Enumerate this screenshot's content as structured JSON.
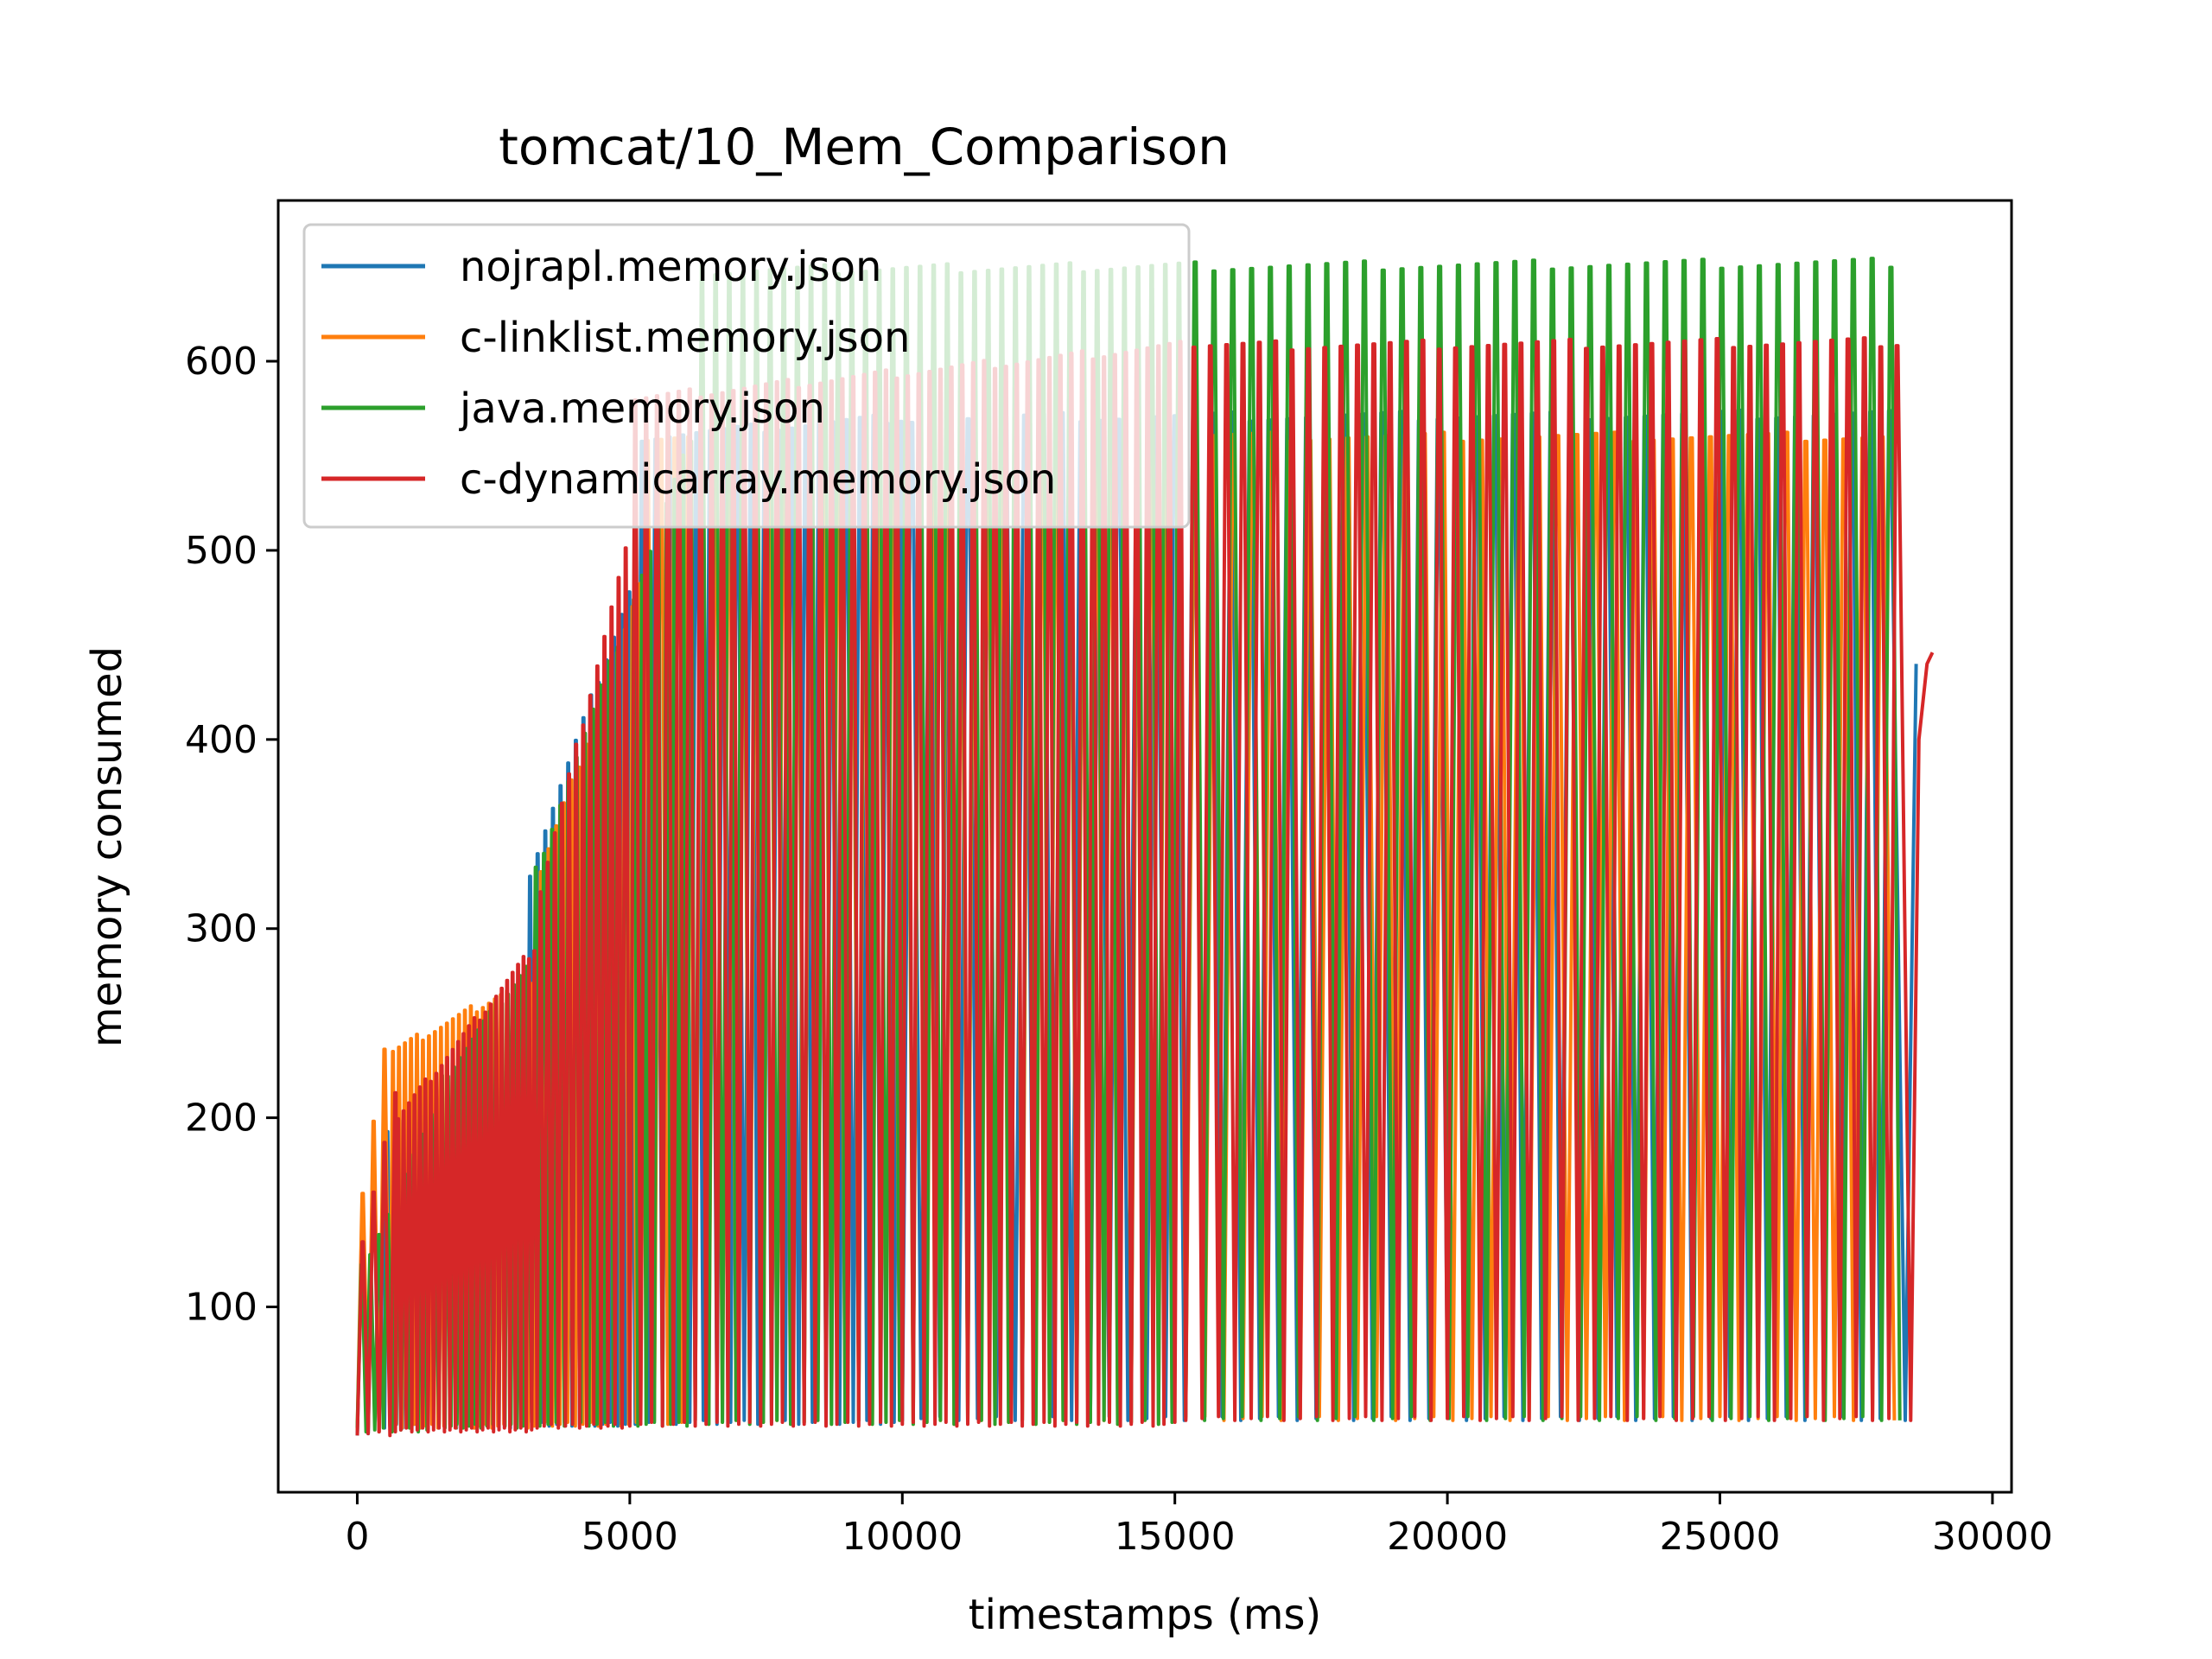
{
  "chart_data": {
    "type": "line",
    "title": "tomcat/10_Mem_Comparison",
    "xlabel": "timestamps (ms)",
    "ylabel": "memory consumed",
    "xlim": [
      -1450,
      30350
    ],
    "ylim": [
      2,
      685
    ],
    "xticks": [
      0,
      5000,
      10000,
      15000,
      20000,
      25000,
      30000
    ],
    "yticks": [
      100,
      200,
      300,
      400,
      500,
      600
    ],
    "grid": false,
    "legend_position": "upper-left",
    "series": [
      {
        "name": "nojrapl.memory.json",
        "color": "#1f77b4",
        "segments": [
          {
            "start": 0,
            "end": 500,
            "period": 200,
            "base": 32,
            "peak_start": 140,
            "peak_end": 210
          },
          {
            "start": 500,
            "end": 3100,
            "period": 110,
            "base": 36,
            "peak_start": 195,
            "peak_end": 250
          },
          {
            "start": 3100,
            "end": 5100,
            "period": 140,
            "base": 37,
            "peak_start": 330,
            "peak_end": 478
          },
          {
            "start": 5100,
            "end": 10000,
            "period": 250,
            "base": 38,
            "peak_start": 560,
            "peak_end": 570
          },
          {
            "start": 10000,
            "end": 28400,
            "period": 345,
            "base": 40,
            "peak_start": 570,
            "peak_end": 572
          }
        ],
        "tail": [
          [
            28400,
            40
          ],
          [
            28600,
            440
          ]
        ]
      },
      {
        "name": "c-linklist.memory.json",
        "color": "#ff7f0e",
        "segments": [
          {
            "start": 0,
            "end": 600,
            "period": 200,
            "base": 34,
            "peak_start": 160,
            "peak_end": 235
          },
          {
            "start": 600,
            "end": 3300,
            "period": 110,
            "base": 36,
            "peak_start": 235,
            "peak_end": 275
          },
          {
            "start": 3300,
            "end": 5200,
            "period": 140,
            "base": 37,
            "peak_start": 330,
            "peak_end": 480
          },
          {
            "start": 5200,
            "end": 15200,
            "period": 250,
            "base": 38,
            "peak_start": 558,
            "peak_end": 560
          },
          {
            "start": 15200,
            "end": 28200,
            "period": 350,
            "base": 40,
            "peak_start": 560,
            "peak_end": 560
          }
        ],
        "tail": [
          [
            28200,
            40
          ]
        ]
      },
      {
        "name": "java.memory.json",
        "color": "#2ca02c",
        "segments": [
          {
            "start": 0,
            "end": 1500,
            "period": 160,
            "base": 34,
            "peak_start": 120,
            "peak_end": 200
          },
          {
            "start": 1500,
            "end": 3200,
            "period": 110,
            "base": 36,
            "peak_start": 220,
            "peak_end": 280
          },
          {
            "start": 3200,
            "end": 6200,
            "period": 150,
            "base": 37,
            "peak_start": 330,
            "peak_end": 560
          },
          {
            "start": 6200,
            "end": 15200,
            "period": 250,
            "base": 38,
            "peak_start": 648,
            "peak_end": 650
          },
          {
            "start": 15200,
            "end": 28300,
            "period": 345,
            "base": 40,
            "peak_start": 650,
            "peak_end": 652
          }
        ],
        "tail": [
          [
            28300,
            40
          ]
        ]
      },
      {
        "name": "c-dynamicarray.memory.json",
        "color": "#d62728",
        "segments": [
          {
            "start": 0,
            "end": 700,
            "period": 200,
            "base": 32,
            "peak_start": 135,
            "peak_end": 212
          },
          {
            "start": 700,
            "end": 3300,
            "period": 100,
            "base": 34,
            "peak_start": 200,
            "peak_end": 290
          },
          {
            "start": 3300,
            "end": 5000,
            "period": 130,
            "base": 36,
            "peak_start": 320,
            "peak_end": 500
          },
          {
            "start": 5000,
            "end": 15200,
            "period": 200,
            "base": 37,
            "peak_start": 580,
            "peak_end": 608
          },
          {
            "start": 15200,
            "end": 28500,
            "period": 300,
            "base": 40,
            "peak_start": 608,
            "peak_end": 610
          }
        ],
        "tail": [
          [
            28500,
            40
          ],
          [
            28650,
            400
          ],
          [
            28800,
            440
          ],
          [
            28900,
            446
          ]
        ]
      }
    ]
  }
}
